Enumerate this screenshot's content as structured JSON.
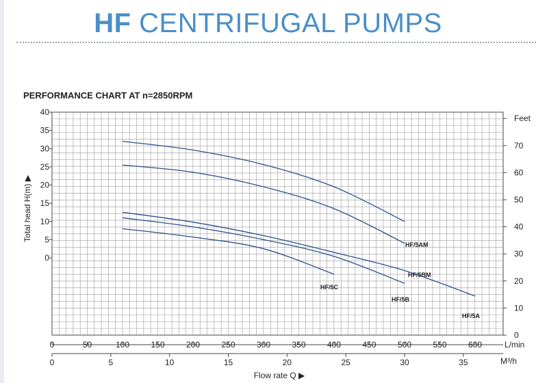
{
  "header": {
    "brand": "HF",
    "title_rest": "CENTRIFUGAL PUMPS"
  },
  "chart_data": {
    "type": "line",
    "title": "PERFORMANCE CHART AT n=2850RPM",
    "ylabel": "Total head H(m) ▶",
    "xlabel": "Flow rate Q ▶",
    "y_ticks": [
      "0",
      "5",
      "10",
      "15",
      "20",
      "25",
      "30",
      "35",
      "40"
    ],
    "y_right_ticks": [
      "0",
      "10",
      "20",
      "30",
      "40",
      "50",
      "60",
      "70",
      "Feet"
    ],
    "x_ticks_lmin": [
      "0",
      "50",
      "100",
      "150",
      "200",
      "250",
      "300",
      "350",
      "400",
      "450",
      "500",
      "550",
      "600"
    ],
    "x_unit_lmin": "L/min",
    "x_ticks_m3h": [
      "0",
      "5",
      "10",
      "15",
      "20",
      "25",
      "30",
      "35"
    ],
    "x_unit_m3h": "M³/h",
    "series_color": "#2e4f8a",
    "series": [
      {
        "name": "HF/5AM",
        "x": [
          100,
          200,
          300,
          400,
          500
        ],
        "y": [
          32,
          29.6,
          25.6,
          19.5,
          10
        ]
      },
      {
        "name": "HF/5BM",
        "x": [
          100,
          200,
          300,
          400,
          500
        ],
        "y": [
          25.5,
          23.5,
          19.5,
          13.5,
          4
        ]
      },
      {
        "name": "HF/5A",
        "x": [
          100,
          200,
          300,
          400,
          500,
          600
        ],
        "y": [
          12.5,
          9.8,
          6.1,
          1.5,
          -3.5,
          -10.5
        ]
      },
      {
        "name": "HF/5B",
        "x": [
          100,
          200,
          300,
          400,
          500
        ],
        "y": [
          11,
          8.5,
          5,
          0.4,
          -7
        ]
      },
      {
        "name": "HF/5C",
        "x": [
          100,
          200,
          300,
          400
        ],
        "y": [
          8,
          5.7,
          2.5,
          -4.5
        ]
      }
    ]
  }
}
